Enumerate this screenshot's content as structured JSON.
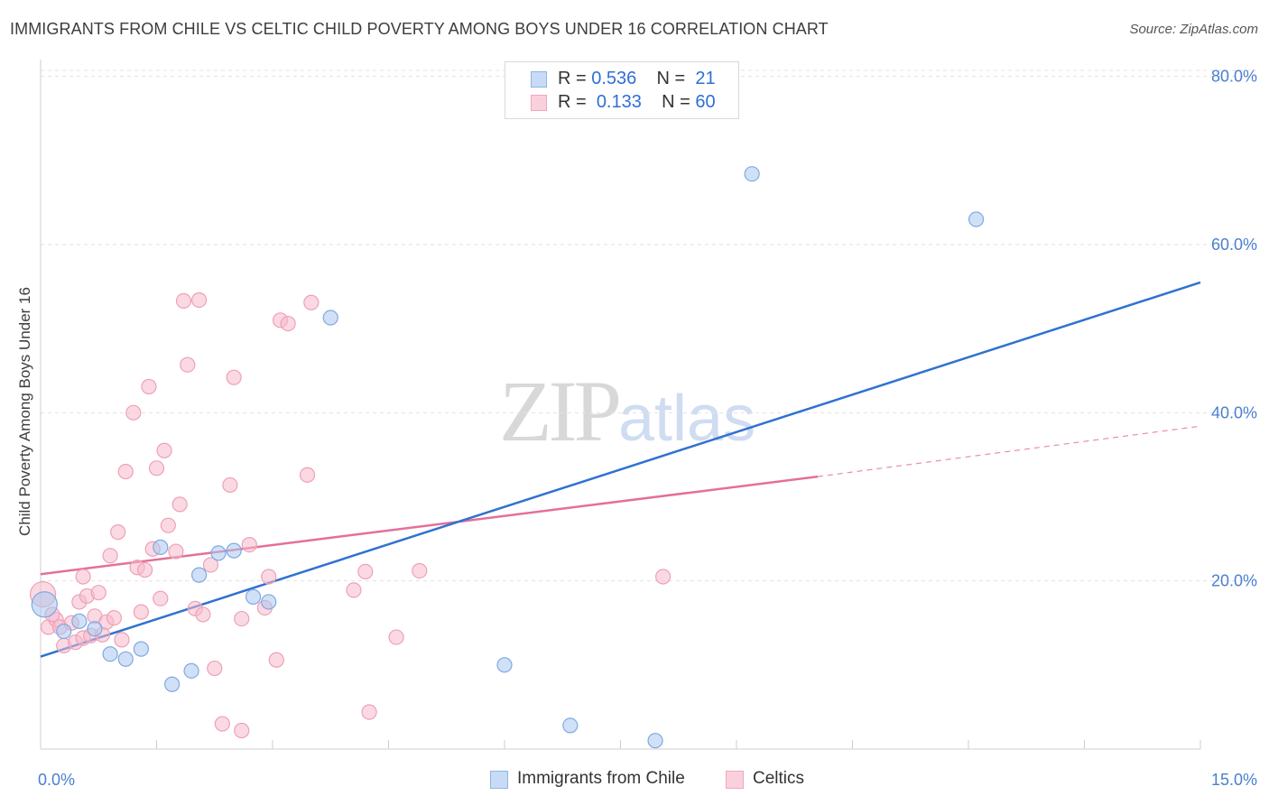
{
  "header": {
    "title": "IMMIGRANTS FROM CHILE VS CELTIC CHILD POVERTY AMONG BOYS UNDER 16 CORRELATION CHART",
    "source": "Source: ZipAtlas.com"
  },
  "watermark": {
    "zip": "ZIP",
    "atlas": "atlas"
  },
  "legend": {
    "rows": [
      {
        "r_label": "R = ",
        "r_value": "0.536",
        "n_label": "N = ",
        "n_value": "21",
        "color": "#a9c8f1"
      },
      {
        "r_label": "R = ",
        "r_value": "0.133",
        "n_label": "N = ",
        "n_value": "60",
        "color": "#f7b9cc"
      }
    ]
  },
  "bottom_legend": [
    {
      "label": "Immigrants from Chile",
      "color": "#a9c8f1"
    },
    {
      "label": "Celtics",
      "color": "#f7b9cc"
    }
  ],
  "chart_data": {
    "type": "scatter",
    "title": "IMMIGRANTS FROM CHILE VS CELTIC CHILD POVERTY AMONG BOYS UNDER 16 CORRELATION CHART",
    "xlabel": "",
    "ylabel": "Child Poverty Among Boys Under 16",
    "xlim": [
      0,
      15
    ],
    "ylim": [
      0,
      82
    ],
    "x_tick_labels": [
      {
        "value": 0,
        "label": "0.0%"
      },
      {
        "value": 15,
        "label": "15.0%"
      }
    ],
    "y_tick_labels": [
      {
        "value": 20,
        "label": "20.0%"
      },
      {
        "value": 40,
        "label": "40.0%"
      },
      {
        "value": 60,
        "label": "60.0%"
      },
      {
        "value": 80,
        "label": "80.0%"
      }
    ],
    "grid": true,
    "legend_position": "top-center",
    "series": [
      {
        "name": "Immigrants from Chile",
        "color": "#a9c8f1",
        "stroke": "#7fa9e0",
        "line_color": "#2f72d0",
        "points": [
          [
            0.05,
            17.2
          ],
          [
            0.3,
            14.0
          ],
          [
            0.5,
            15.2
          ],
          [
            0.7,
            14.3
          ],
          [
            0.9,
            11.3
          ],
          [
            1.1,
            10.7
          ],
          [
            1.3,
            11.9
          ],
          [
            1.55,
            24.0
          ],
          [
            1.7,
            7.7
          ],
          [
            1.95,
            9.3
          ],
          [
            2.05,
            20.7
          ],
          [
            2.3,
            23.3
          ],
          [
            2.5,
            23.6
          ],
          [
            2.75,
            18.1
          ],
          [
            2.95,
            17.5
          ],
          [
            3.75,
            51.3
          ],
          [
            6.0,
            10.0
          ],
          [
            6.85,
            2.8
          ],
          [
            7.95,
            1.0
          ],
          [
            9.2,
            68.4
          ],
          [
            12.1,
            63.0
          ]
        ],
        "trend": {
          "x": [
            0,
            15
          ],
          "y": [
            11.0,
            55.5
          ]
        }
      },
      {
        "name": "Celtics",
        "color": "#f7b9cc",
        "stroke": "#eea0b8",
        "line_color": "#e2709a",
        "points": [
          [
            0.03,
            18.4
          ],
          [
            0.1,
            14.5
          ],
          [
            0.2,
            15.4
          ],
          [
            0.25,
            14.5
          ],
          [
            0.3,
            12.3
          ],
          [
            0.4,
            15.0
          ],
          [
            0.45,
            12.7
          ],
          [
            0.5,
            17.5
          ],
          [
            0.55,
            13.2
          ],
          [
            0.55,
            20.5
          ],
          [
            0.6,
            18.2
          ],
          [
            0.65,
            13.5
          ],
          [
            0.7,
            15.8
          ],
          [
            0.75,
            18.6
          ],
          [
            0.8,
            13.6
          ],
          [
            0.85,
            15.1
          ],
          [
            0.9,
            23.0
          ],
          [
            0.95,
            15.6
          ],
          [
            1.0,
            25.8
          ],
          [
            1.05,
            13.0
          ],
          [
            1.1,
            33.0
          ],
          [
            1.2,
            40.0
          ],
          [
            1.25,
            21.6
          ],
          [
            1.3,
            16.3
          ],
          [
            1.35,
            21.3
          ],
          [
            1.4,
            43.1
          ],
          [
            1.45,
            23.8
          ],
          [
            1.5,
            33.4
          ],
          [
            1.55,
            17.9
          ],
          [
            1.6,
            35.5
          ],
          [
            1.65,
            26.6
          ],
          [
            1.75,
            23.5
          ],
          [
            1.8,
            29.1
          ],
          [
            1.85,
            53.3
          ],
          [
            1.9,
            45.7
          ],
          [
            2.0,
            16.7
          ],
          [
            2.05,
            53.4
          ],
          [
            2.1,
            16.0
          ],
          [
            2.2,
            21.9
          ],
          [
            2.25,
            9.6
          ],
          [
            2.35,
            3.0
          ],
          [
            2.45,
            31.4
          ],
          [
            2.5,
            44.2
          ],
          [
            2.6,
            15.5
          ],
          [
            2.6,
            2.2
          ],
          [
            2.7,
            24.3
          ],
          [
            2.9,
            16.8
          ],
          [
            2.95,
            20.5
          ],
          [
            3.05,
            10.6
          ],
          [
            3.1,
            51.0
          ],
          [
            3.2,
            50.6
          ],
          [
            3.45,
            32.6
          ],
          [
            3.5,
            53.1
          ],
          [
            4.05,
            18.9
          ],
          [
            4.2,
            21.1
          ],
          [
            4.25,
            4.4
          ],
          [
            4.6,
            13.3
          ],
          [
            4.9,
            21.2
          ],
          [
            8.05,
            20.5
          ],
          [
            0.15,
            16.0
          ]
        ],
        "trend_solid": {
          "x": [
            0,
            10.05
          ],
          "y": [
            20.8,
            32.4
          ]
        },
        "trend_dashed": {
          "x": [
            10.05,
            15
          ],
          "y": [
            32.4,
            38.4
          ]
        }
      }
    ]
  }
}
